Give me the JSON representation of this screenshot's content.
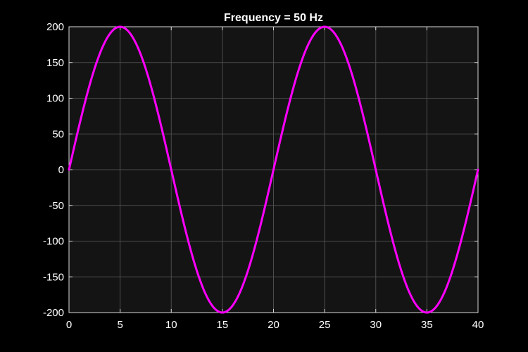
{
  "chart_data": {
    "type": "line",
    "title": "Frequency = 50 Hz",
    "xlabel": "",
    "ylabel": "",
    "xlim": [
      0,
      40
    ],
    "ylim": [
      -200,
      200
    ],
    "grid": true,
    "x_ticks": [
      0,
      5,
      10,
      15,
      20,
      25,
      30,
      35,
      40
    ],
    "y_ticks": [
      200,
      150,
      100,
      50,
      0,
      -50,
      -100,
      -150,
      -200
    ],
    "x_tick_labels": [
      "0",
      "5",
      "10",
      "15",
      "20",
      "25",
      "30",
      "35",
      "40"
    ],
    "y_tick_labels": [
      "200",
      "150",
      "100",
      "50",
      "0",
      "-50",
      "-100",
      "-150",
      "-200"
    ],
    "series": [
      {
        "function": "200*sin(2*pi*x/20)",
        "amplitude": 200,
        "period": 20,
        "x": [
          0,
          1,
          2,
          3,
          4,
          5,
          6,
          7,
          8,
          9,
          10,
          11,
          12,
          13,
          14,
          15,
          16,
          17,
          18,
          19,
          20,
          21,
          22,
          23,
          24,
          25,
          26,
          27,
          28,
          29,
          30,
          31,
          32,
          33,
          34,
          35,
          36,
          37,
          38,
          39,
          40
        ],
        "y": [
          0,
          61.8,
          117.6,
          161.8,
          190.2,
          200,
          190.2,
          161.8,
          117.6,
          61.8,
          0,
          -61.8,
          -117.6,
          -161.8,
          -190.2,
          -200,
          -190.2,
          -161.8,
          -117.6,
          -61.8,
          0,
          61.8,
          117.6,
          161.8,
          190.2,
          200,
          190.2,
          161.8,
          117.6,
          61.8,
          0,
          -61.8,
          -117.6,
          -161.8,
          -190.2,
          -200,
          -190.2,
          -161.8,
          -117.6,
          -61.8,
          0
        ],
        "color": "#ff00ff"
      }
    ],
    "colors": {
      "figure_background": "#000000",
      "axes_background": "#141414",
      "grid": "#4d4d4d",
      "axes_edge": "#d9d9d9",
      "text": "#ffffff"
    }
  }
}
